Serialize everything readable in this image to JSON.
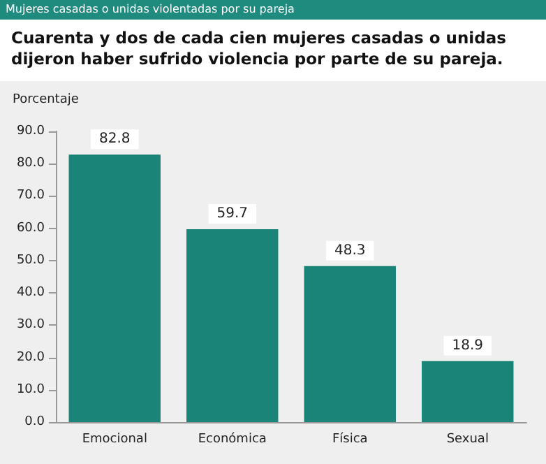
{
  "chart_data": {
    "type": "bar",
    "title": "Mujeres casadas o unidas violentadas por su pareja",
    "subtitle": "Cuarenta y dos de cada cien mujeres casadas o unidas dijeron haber sufrido violencia por parte de su pareja.",
    "ylabel": "Porcentaje",
    "categories": [
      "Emocional",
      "Económica",
      "Física",
      "Sexual"
    ],
    "values": [
      82.8,
      59.7,
      48.3,
      18.9
    ],
    "color": "#1a8478",
    "data_labels": true,
    "ylim": [
      0,
      90
    ],
    "yticks": [
      {
        "value": 0,
        "label": "0.0"
      },
      {
        "value": 10,
        "label": "10.0"
      },
      {
        "value": 20,
        "label": "20.0"
      },
      {
        "value": 30,
        "label": "30.0"
      },
      {
        "value": 40,
        "label": "40.0"
      },
      {
        "value": 50,
        "label": "50.0"
      },
      {
        "value": 60,
        "label": "60.0"
      },
      {
        "value": 70,
        "label": "70.0"
      },
      {
        "value": 80,
        "label": "80.0"
      },
      {
        "value": 90,
        "label": "90.0"
      }
    ],
    "grid": false
  }
}
